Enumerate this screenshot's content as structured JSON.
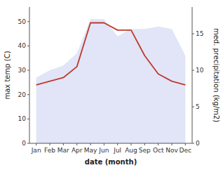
{
  "chart_data": {
    "type": "area",
    "categories": [
      "Jan",
      "Feb",
      "Mar",
      "Apr",
      "May",
      "Jun",
      "Jul",
      "Aug",
      "Sep",
      "Oct",
      "Nov",
      "Dec"
    ],
    "xlabel": "date (month)",
    "ylabel": "max temp (C)",
    "y2label": "med. precipitation (kg/m2)",
    "ylim": [
      0,
      56
    ],
    "yticks": [
      0,
      10,
      20,
      30,
      40,
      50
    ],
    "y2lim": [
      0,
      18.667
    ],
    "y2ticks": [
      0,
      5,
      10,
      15
    ],
    "grid": false,
    "series": [
      {
        "type": "area",
        "color": "#c8d0f0",
        "values": [
          27,
          30,
          32,
          37,
          51,
          51,
          44,
          47,
          47,
          48,
          47,
          36
        ]
      },
      {
        "type": "line",
        "axis": "y2",
        "color": "#c0392b",
        "values": [
          8.0,
          8.5,
          9.0,
          10.5,
          16.5,
          16.5,
          15.5,
          15.5,
          12.0,
          9.5,
          8.5,
          8.0
        ]
      }
    ]
  }
}
